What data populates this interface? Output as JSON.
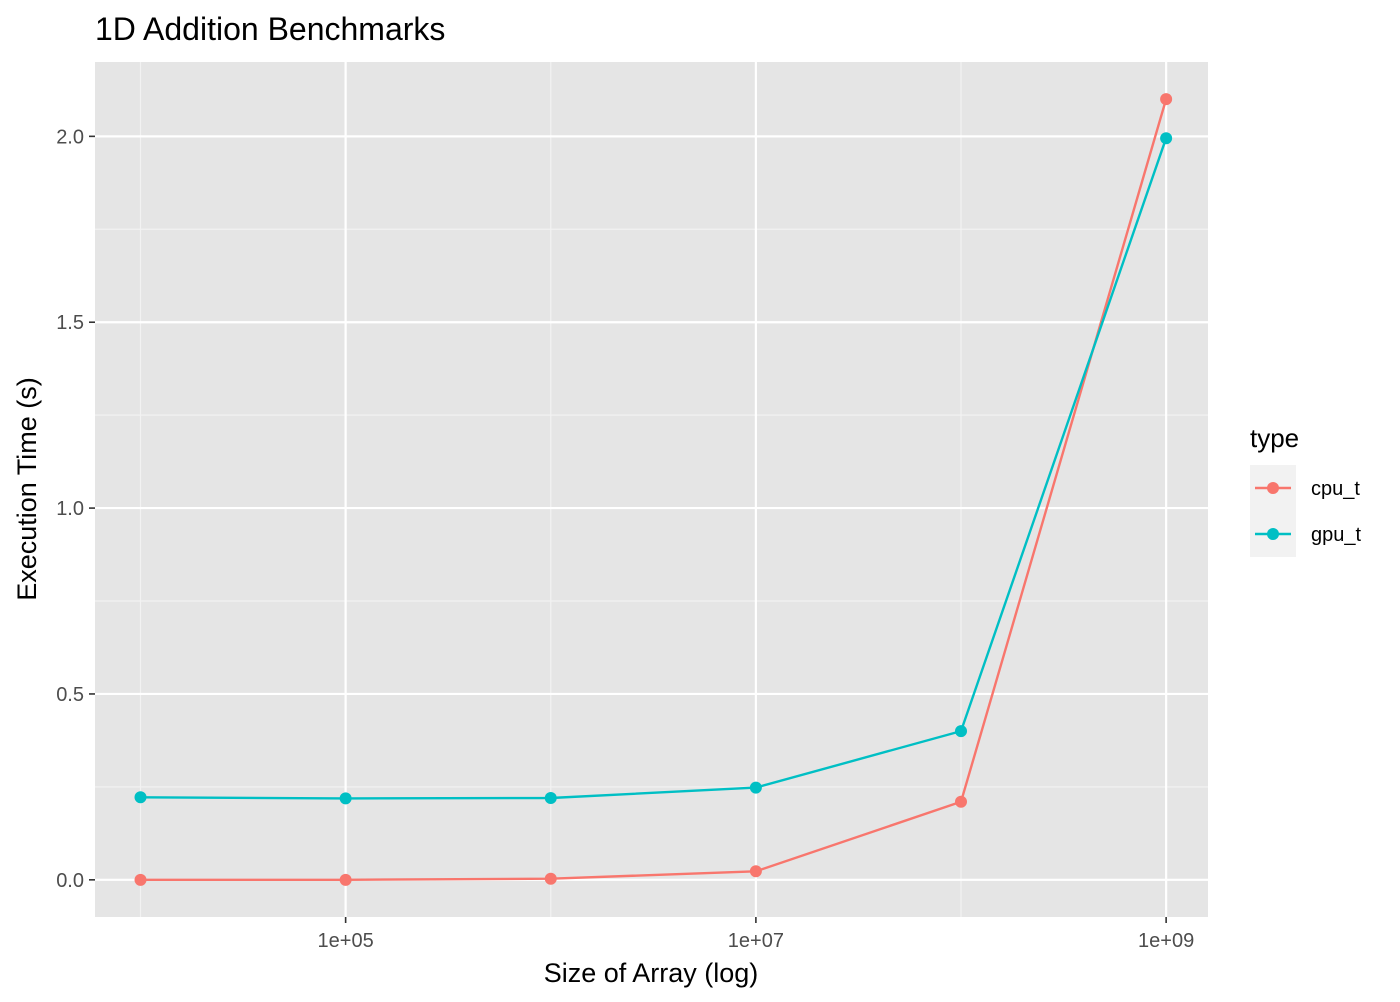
{
  "chart_data": {
    "type": "line",
    "title": "1D Addition Benchmarks",
    "xlabel": "Size of Array (log)",
    "ylabel": "Execution Time (s)",
    "x_scale": "log10",
    "x": [
      10000,
      100000,
      1000000,
      10000000,
      100000000,
      1000000000
    ],
    "xlim": [
      6000,
      1600000000
    ],
    "x_ticks": [
      100000,
      10000000,
      1000000000
    ],
    "x_tick_labels": [
      "1e+05",
      "1e+07",
      "1e+09"
    ],
    "ylim": [
      -0.1,
      2.2
    ],
    "y_ticks": [
      0,
      0.5,
      1,
      1.5,
      2
    ],
    "y_tick_labels": [
      "0.0",
      "0.5",
      "1.0",
      "1.5",
      "2.0"
    ],
    "grid": true,
    "background": "#e5e5e5",
    "legend": {
      "title": "type",
      "placement": "right"
    },
    "series": [
      {
        "name": "cpu_t",
        "color": "#f8766d",
        "values": [
          0.0,
          0.0,
          0.003,
          0.023,
          0.21,
          2.1
        ]
      },
      {
        "name": "gpu_t",
        "color": "#00bfc4",
        "values": [
          0.222,
          0.219,
          0.22,
          0.248,
          0.4,
          1.995
        ]
      }
    ]
  }
}
